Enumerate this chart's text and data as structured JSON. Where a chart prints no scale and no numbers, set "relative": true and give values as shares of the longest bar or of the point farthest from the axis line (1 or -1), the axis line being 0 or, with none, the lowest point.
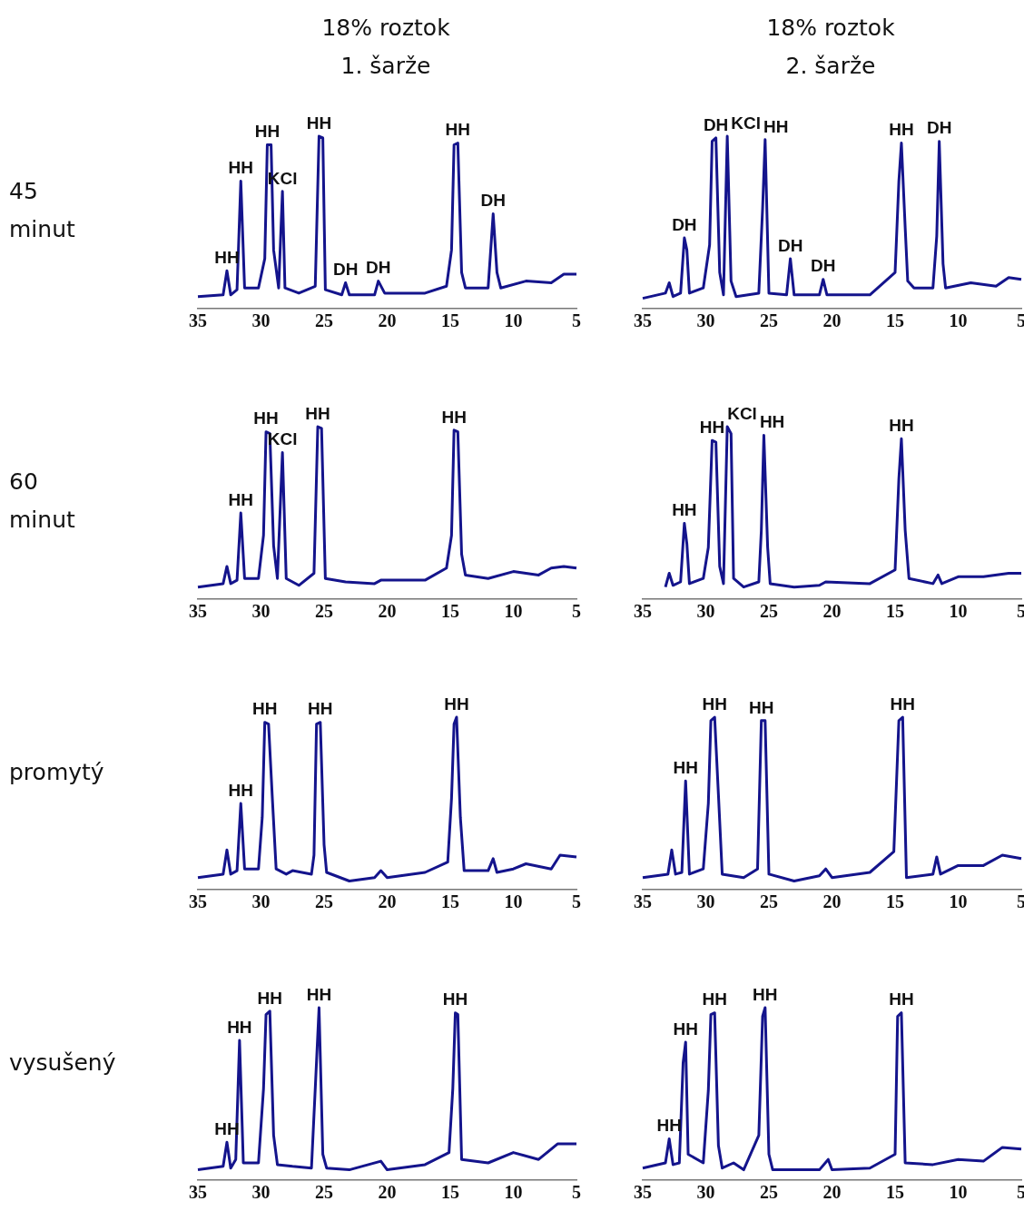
{
  "chart_data": [
    {
      "type": "line",
      "title": "18% roztok\n1. šarže",
      "ylabel": "45\nminut",
      "relative": true,
      "xlim": [
        35,
        5
      ],
      "xticks": [
        35,
        30,
        25,
        20,
        15,
        10,
        5
      ],
      "grid": false,
      "legend": false,
      "series": [
        {
          "color": "#14148c",
          "x": [
            35,
            33,
            32.7,
            32.4,
            31.9,
            31.6,
            31.3,
            30.2,
            29.7,
            29.5,
            29.2,
            29.0,
            28.6,
            28.3,
            28.1,
            27,
            25.7,
            25.4,
            25.1,
            24.9,
            23.6,
            23.3,
            23.0,
            21,
            20.7,
            20.2,
            17,
            15.3,
            14.9,
            14.7,
            14.4,
            14.1,
            13.8,
            12,
            11.6,
            11.3,
            11.0,
            9,
            7,
            6,
            5
          ],
          "values": [
            0.07,
            0.08,
            0.22,
            0.08,
            0.11,
            0.74,
            0.12,
            0.12,
            0.29,
            0.95,
            0.95,
            0.34,
            0.12,
            0.68,
            0.12,
            0.09,
            0.13,
            1,
            0.99,
            0.11,
            0.08,
            0.15,
            0.08,
            0.08,
            0.16,
            0.09,
            0.09,
            0.13,
            0.34,
            0.95,
            0.96,
            0.21,
            0.12,
            0.12,
            0.55,
            0.21,
            0.12,
            0.16,
            0.15,
            0.2,
            0.2
          ]
        }
      ],
      "annotations": [
        {
          "text": "HH",
          "x": 32.7,
          "y": 0.22
        },
        {
          "text": "HH",
          "x": 31.6,
          "y": 0.74
        },
        {
          "text": "HH",
          "x": 29.5,
          "y": 0.95
        },
        {
          "text": "KCl",
          "x": 28.3,
          "y": 0.68
        },
        {
          "text": "HH",
          "x": 25.4,
          "y": 1
        },
        {
          "text": "DH",
          "x": 23.3,
          "y": 0.15
        },
        {
          "text": "DH",
          "x": 20.7,
          "y": 0.16
        },
        {
          "text": "HH",
          "x": 14.4,
          "y": 0.96
        },
        {
          "text": "DH",
          "x": 11.6,
          "y": 0.55
        }
      ]
    },
    {
      "type": "line",
      "title": "18% roztok\n2. šarže",
      "relative": true,
      "xlim": [
        35,
        5
      ],
      "xticks": [
        35,
        30,
        25,
        20,
        15,
        10,
        5
      ],
      "grid": false,
      "legend": false,
      "series": [
        {
          "color": "#14148c",
          "x": [
            35,
            33.2,
            32.9,
            32.6,
            32,
            31.7,
            31.5,
            31.3,
            30.2,
            29.7,
            29.5,
            29.2,
            28.9,
            28.6,
            28.3,
            28.0,
            27.6,
            25.8,
            25.5,
            25.3,
            25.0,
            23.6,
            23.3,
            23.0,
            21,
            20.7,
            20.4,
            17,
            15.0,
            14.7,
            14.5,
            14.2,
            14.0,
            13.5,
            12,
            11.7,
            11.5,
            11.2,
            11.0,
            9,
            7,
            6,
            5
          ],
          "values": [
            0.06,
            0.09,
            0.15,
            0.07,
            0.09,
            0.41,
            0.34,
            0.09,
            0.12,
            0.37,
            0.97,
            0.99,
            0.21,
            0.08,
            1,
            0.16,
            0.07,
            0.09,
            0.58,
            0.98,
            0.09,
            0.08,
            0.29,
            0.08,
            0.08,
            0.17,
            0.08,
            0.08,
            0.21,
            0.74,
            0.96,
            0.47,
            0.16,
            0.12,
            0.12,
            0.42,
            0.97,
            0.26,
            0.12,
            0.15,
            0.13,
            0.18,
            0.17
          ]
        }
      ],
      "annotations": [
        {
          "text": "DH",
          "x": 31.7,
          "y": 0.41
        },
        {
          "text": "DH",
          "x": 29.2,
          "y": 0.99
        },
        {
          "text": "KCl",
          "x": 28.3,
          "y": 1
        },
        {
          "text": "HH",
          "x": 25.3,
          "y": 0.98
        },
        {
          "text": "DH",
          "x": 23.3,
          "y": 0.29
        },
        {
          "text": "DH",
          "x": 20.7,
          "y": 0.17
        },
        {
          "text": "HH",
          "x": 14.5,
          "y": 0.96
        },
        {
          "text": "DH",
          "x": 11.5,
          "y": 0.97
        }
      ]
    },
    {
      "type": "line",
      "ylabel": "60\nminut",
      "relative": true,
      "xlim": [
        35,
        5
      ],
      "xticks": [
        35,
        30,
        25,
        20,
        15,
        10,
        5
      ],
      "grid": false,
      "legend": false,
      "series": [
        {
          "color": "#14148c",
          "x": [
            35,
            33,
            32.7,
            32.4,
            31.9,
            31.6,
            31.3,
            30.2,
            29.8,
            29.6,
            29.3,
            29.0,
            28.7,
            28.3,
            28.0,
            27,
            25.8,
            25.5,
            25.2,
            24.9,
            23.3,
            21,
            20.5,
            17,
            15.3,
            14.9,
            14.7,
            14.4,
            14.1,
            13.8,
            12,
            10,
            8,
            7,
            6,
            5
          ],
          "values": [
            0.07,
            0.09,
            0.19,
            0.09,
            0.11,
            0.5,
            0.12,
            0.12,
            0.37,
            0.97,
            0.96,
            0.31,
            0.12,
            0.85,
            0.12,
            0.08,
            0.15,
            1,
            0.99,
            0.12,
            0.1,
            0.09,
            0.11,
            0.11,
            0.18,
            0.37,
            0.98,
            0.97,
            0.26,
            0.14,
            0.12,
            0.16,
            0.14,
            0.18,
            0.19,
            0.18
          ]
        }
      ],
      "annotations": [
        {
          "text": "HH",
          "x": 31.6,
          "y": 0.5
        },
        {
          "text": "HH",
          "x": 29.6,
          "y": 0.97
        },
        {
          "text": "KCl",
          "x": 28.3,
          "y": 0.85
        },
        {
          "text": "HH",
          "x": 25.5,
          "y": 1
        },
        {
          "text": "HH",
          "x": 14.7,
          "y": 0.98
        }
      ]
    },
    {
      "type": "line",
      "relative": true,
      "xlim": [
        35,
        5
      ],
      "xticks": [
        35,
        30,
        25,
        20,
        15,
        10,
        5
      ],
      "grid": false,
      "legend": false,
      "series": [
        {
          "color": "#14148c",
          "x": [
            33.2,
            32.9,
            32.6,
            32,
            31.7,
            31.5,
            31.3,
            30.2,
            29.8,
            29.5,
            29.2,
            28.9,
            28.6,
            28.3,
            28.0,
            27.8,
            27,
            25.8,
            25.6,
            25.4,
            25.1,
            24.9,
            23,
            21,
            20.5,
            17,
            15.0,
            14.7,
            14.5,
            14.2,
            13.9,
            12,
            11.6,
            11.3,
            10,
            8,
            6,
            5
          ],
          "values": [
            0.07,
            0.15,
            0.08,
            0.1,
            0.44,
            0.32,
            0.09,
            0.12,
            0.3,
            0.92,
            0.91,
            0.19,
            0.09,
            1,
            0.96,
            0.12,
            0.07,
            0.1,
            0.4,
            0.95,
            0.3,
            0.09,
            0.07,
            0.08,
            0.1,
            0.09,
            0.17,
            0.7,
            0.93,
            0.4,
            0.12,
            0.09,
            0.14,
            0.09,
            0.13,
            0.13,
            0.15,
            0.15
          ]
        }
      ],
      "annotations": [
        {
          "text": "HH",
          "x": 31.7,
          "y": 0.44
        },
        {
          "text": "HH",
          "x": 29.5,
          "y": 0.92
        },
        {
          "text": "KCl",
          "x": 28.3,
          "y": 1
        },
        {
          "text": "HH",
          "x": 25.4,
          "y": 0.95
        },
        {
          "text": "HH",
          "x": 14.5,
          "y": 0.93
        }
      ]
    },
    {
      "type": "line",
      "ylabel": "promytý",
      "relative": true,
      "xlim": [
        35,
        5
      ],
      "xticks": [
        35,
        30,
        25,
        20,
        15,
        10,
        5
      ],
      "grid": false,
      "legend": false,
      "series": [
        {
          "color": "#14148c",
          "x": [
            35,
            33,
            32.7,
            32.4,
            31.9,
            31.6,
            31.3,
            30.2,
            29.9,
            29.7,
            29.4,
            29.1,
            28.8,
            28,
            27.5,
            26,
            25.8,
            25.6,
            25.3,
            25.0,
            24.8,
            23,
            21,
            20.5,
            20,
            17,
            15.2,
            14.9,
            14.7,
            14.5,
            14.2,
            13.9,
            12,
            11.6,
            11.3,
            10,
            9,
            7,
            6.3,
            5
          ],
          "values": [
            0.07,
            0.09,
            0.23,
            0.09,
            0.11,
            0.5,
            0.12,
            0.12,
            0.42,
            0.97,
            0.96,
            0.53,
            0.12,
            0.09,
            0.11,
            0.09,
            0.2,
            0.96,
            0.97,
            0.26,
            0.1,
            0.05,
            0.07,
            0.11,
            0.07,
            0.1,
            0.16,
            0.53,
            0.96,
            1,
            0.42,
            0.11,
            0.11,
            0.18,
            0.1,
            0.12,
            0.15,
            0.12,
            0.2,
            0.19
          ]
        }
      ],
      "annotations": [
        {
          "text": "HH",
          "x": 31.6,
          "y": 0.5
        },
        {
          "text": "HH",
          "x": 29.7,
          "y": 0.97
        },
        {
          "text": "HH",
          "x": 25.3,
          "y": 0.97
        },
        {
          "text": "HH",
          "x": 14.5,
          "y": 1
        }
      ]
    },
    {
      "type": "line",
      "relative": true,
      "xlim": [
        35,
        5
      ],
      "xticks": [
        35,
        30,
        25,
        20,
        15,
        10,
        5
      ],
      "grid": false,
      "legend": false,
      "series": [
        {
          "color": "#14148c",
          "x": [
            35,
            33,
            32.7,
            32.4,
            31.9,
            31.6,
            31.3,
            30.2,
            29.8,
            29.6,
            29.3,
            29.0,
            28.7,
            27,
            25.9,
            25.6,
            25.3,
            25.0,
            23,
            21,
            20.5,
            20,
            17,
            15.1,
            14.7,
            14.4,
            14.1,
            12,
            11.7,
            11.4,
            10,
            8,
            6.5,
            5
          ],
          "values": [
            0.07,
            0.09,
            0.23,
            0.09,
            0.1,
            0.63,
            0.09,
            0.12,
            0.5,
            0.98,
            1,
            0.55,
            0.09,
            0.07,
            0.12,
            0.98,
            0.98,
            0.09,
            0.05,
            0.08,
            0.12,
            0.07,
            0.1,
            0.22,
            0.98,
            1,
            0.07,
            0.09,
            0.19,
            0.09,
            0.14,
            0.14,
            0.2,
            0.18
          ]
        }
      ],
      "annotations": [
        {
          "text": "HH",
          "x": 31.6,
          "y": 0.63
        },
        {
          "text": "HH",
          "x": 29.3,
          "y": 1
        },
        {
          "text": "HH",
          "x": 25.6,
          "y": 0.98
        },
        {
          "text": "HH",
          "x": 14.4,
          "y": 1
        }
      ]
    },
    {
      "type": "line",
      "ylabel": "vysušený",
      "relative": true,
      "xlim": [
        35,
        5
      ],
      "xticks": [
        35,
        30,
        25,
        20,
        15,
        10,
        5
      ],
      "grid": false,
      "legend": false,
      "series": [
        {
          "color": "#14148c",
          "x": [
            35,
            33,
            32.7,
            32.4,
            32.0,
            31.7,
            31.4,
            30.2,
            29.8,
            29.6,
            29.3,
            29.0,
            28.7,
            27.5,
            26,
            25.7,
            25.4,
            25.1,
            24.8,
            23,
            20.5,
            20,
            17,
            15.1,
            14.8,
            14.6,
            14.4,
            14.1,
            12,
            10,
            8,
            6.5,
            5
          ],
          "values": [
            0.06,
            0.08,
            0.22,
            0.07,
            0.12,
            0.81,
            0.1,
            0.1,
            0.53,
            0.96,
            0.98,
            0.26,
            0.09,
            0.08,
            0.07,
            0.53,
            1,
            0.15,
            0.07,
            0.06,
            0.11,
            0.06,
            0.09,
            0.16,
            0.53,
            0.97,
            0.96,
            0.12,
            0.1,
            0.16,
            0.12,
            0.21,
            0.21
          ]
        }
      ],
      "annotations": [
        {
          "text": "HH",
          "x": 32.7,
          "y": 0.22
        },
        {
          "text": "HH",
          "x": 31.7,
          "y": 0.81
        },
        {
          "text": "HH",
          "x": 29.3,
          "y": 0.98
        },
        {
          "text": "HH",
          "x": 25.4,
          "y": 1
        },
        {
          "text": "HH",
          "x": 14.6,
          "y": 0.97
        }
      ]
    },
    {
      "type": "line",
      "relative": true,
      "xlim": [
        35,
        5
      ],
      "xticks": [
        35,
        30,
        25,
        20,
        15,
        10,
        5
      ],
      "grid": false,
      "legend": false,
      "series": [
        {
          "color": "#14148c",
          "x": [
            35,
            33.2,
            32.9,
            32.6,
            32.1,
            31.8,
            31.6,
            31.4,
            30.2,
            29.8,
            29.6,
            29.3,
            29.0,
            28.7,
            27.8,
            27,
            25.8,
            25.5,
            25.3,
            25.0,
            24.7,
            21,
            20.3,
            20,
            17,
            15.0,
            14.8,
            14.5,
            14.2,
            12,
            10,
            8,
            6.5,
            5
          ],
          "values": [
            0.07,
            0.1,
            0.24,
            0.09,
            0.1,
            0.68,
            0.8,
            0.15,
            0.1,
            0.52,
            0.96,
            0.97,
            0.2,
            0.07,
            0.1,
            0.06,
            0.26,
            0.95,
            1,
            0.15,
            0.06,
            0.06,
            0.12,
            0.06,
            0.07,
            0.15,
            0.95,
            0.97,
            0.1,
            0.09,
            0.12,
            0.11,
            0.19,
            0.18
          ]
        }
      ],
      "annotations": [
        {
          "text": "HH",
          "x": 32.9,
          "y": 0.24
        },
        {
          "text": "HH",
          "x": 31.6,
          "y": 0.8
        },
        {
          "text": "HH",
          "x": 29.3,
          "y": 0.97
        },
        {
          "text": "HH",
          "x": 25.3,
          "y": 1
        },
        {
          "text": "HH",
          "x": 14.5,
          "y": 0.97
        }
      ]
    }
  ]
}
